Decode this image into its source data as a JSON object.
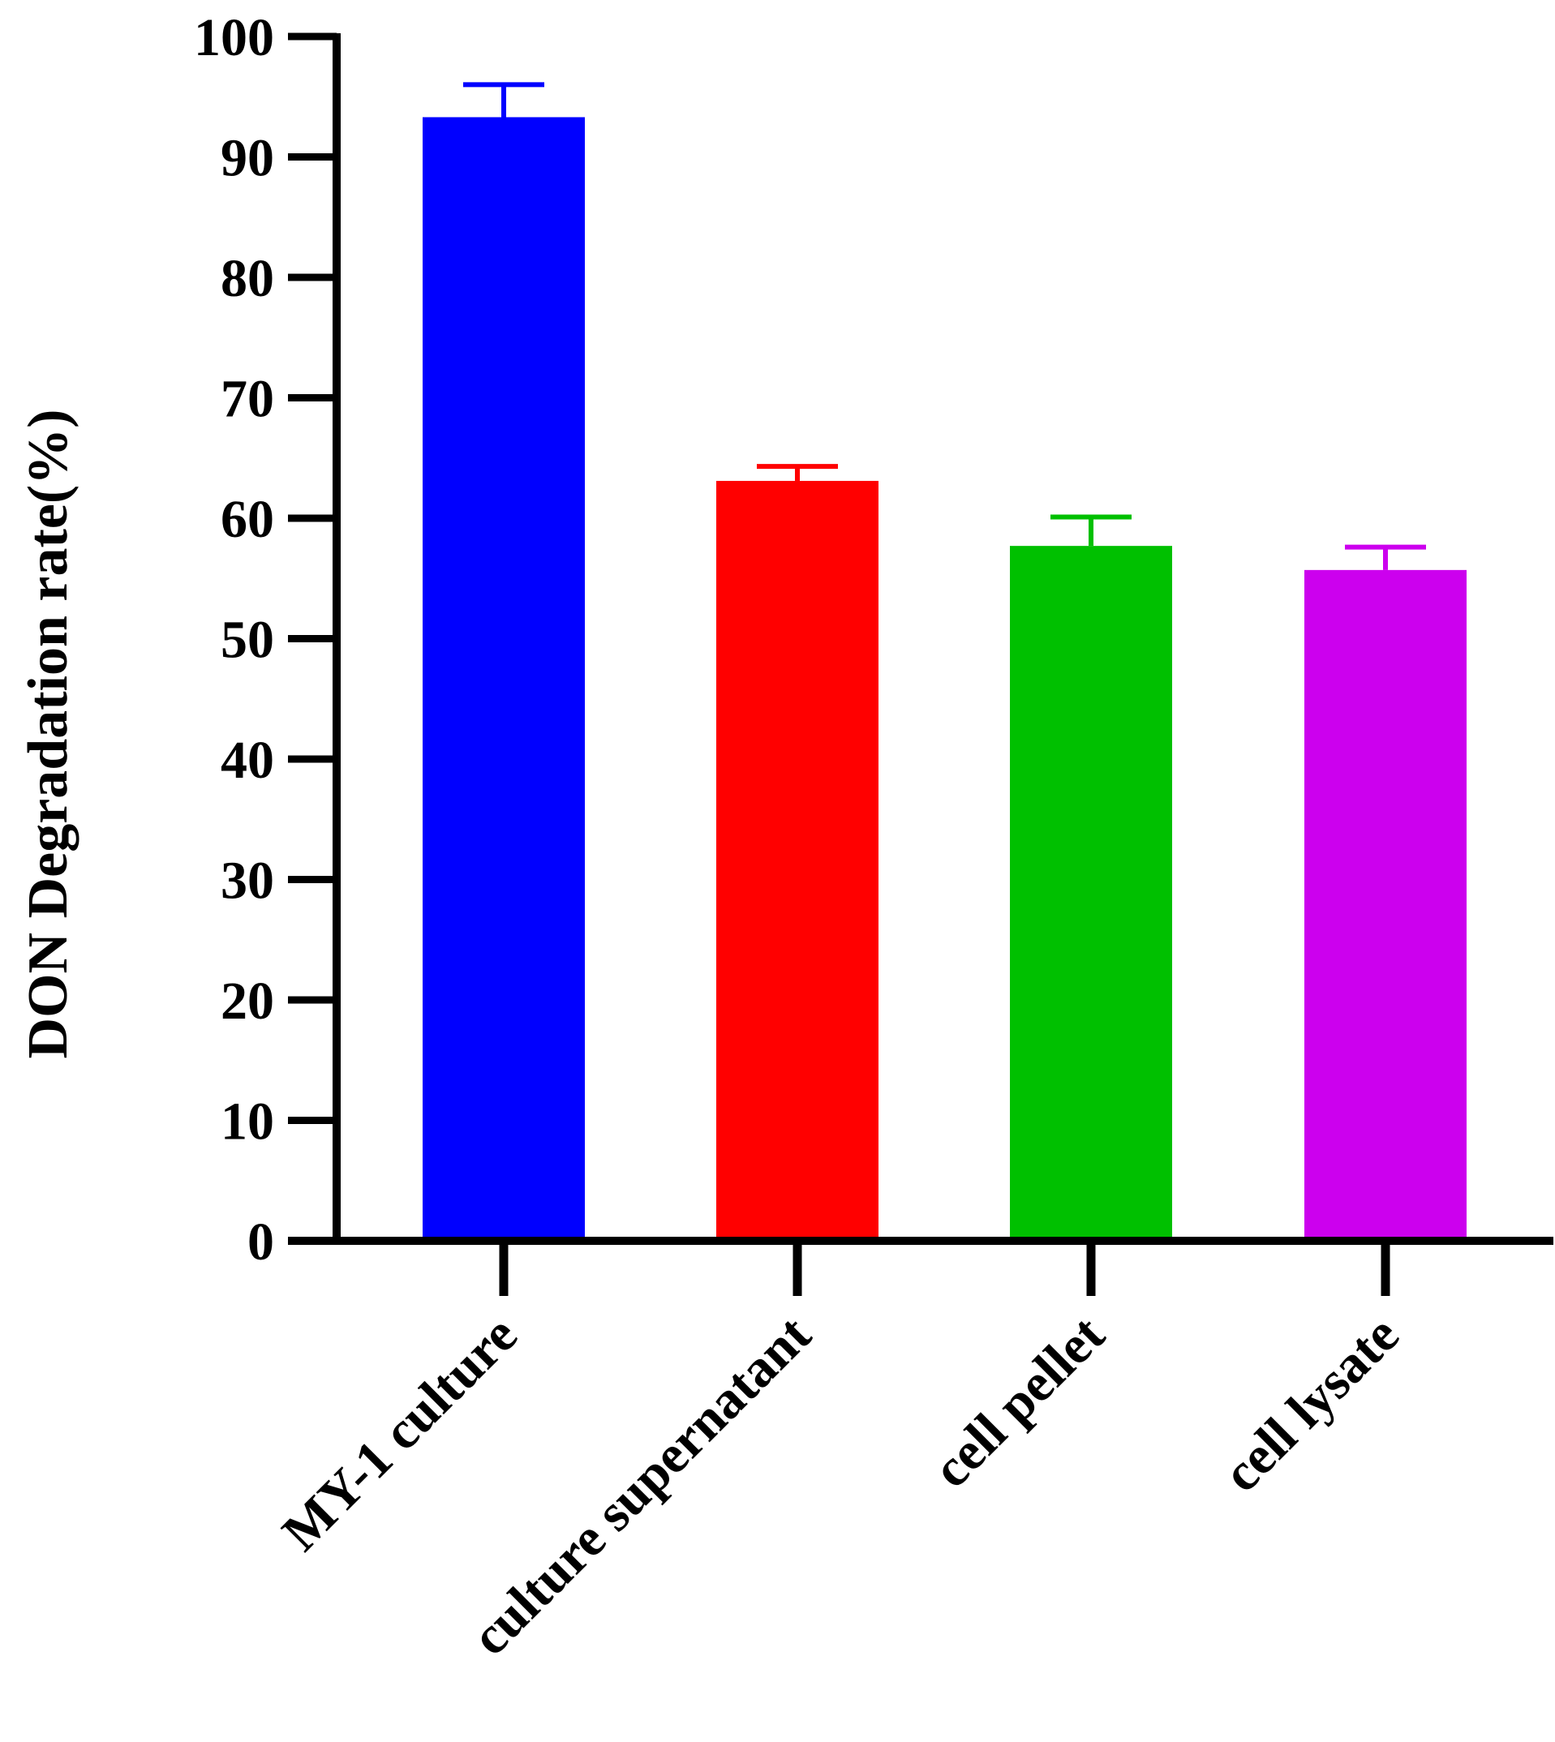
{
  "chart_data": {
    "type": "bar",
    "title": "",
    "xlabel": "",
    "ylabel": "DON Degradation rate(%)",
    "ylim": [
      0,
      100
    ],
    "yticks": [
      "0",
      "10",
      "20",
      "30",
      "40",
      "50",
      "60",
      "70",
      "80",
      "90",
      "100"
    ],
    "categories": [
      "MY-1 culture",
      "culture supernatant",
      "cell pellet",
      "cell lysate"
    ],
    "values": [
      93.3,
      63.1,
      57.7,
      55.7
    ],
    "errors": [
      2.7,
      1.2,
      2.4,
      1.9
    ],
    "colors": [
      "#0000FF",
      "#FF0000",
      "#00C000",
      "#CC00EE"
    ],
    "grid": false,
    "legend": "none"
  }
}
